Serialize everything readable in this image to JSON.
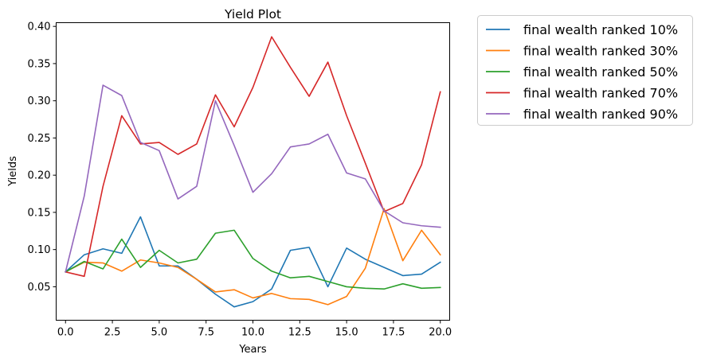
{
  "chart_data": {
    "type": "line",
    "title": "Yield Plot",
    "xlabel": "Years",
    "ylabel": "Yields",
    "xlim": [
      -0.5,
      20.5
    ],
    "ylim": [
      0.005,
      0.405
    ],
    "x_ticks": [
      0.0,
      2.5,
      5.0,
      7.5,
      10.0,
      12.5,
      15.0,
      17.5,
      20.0
    ],
    "x_tick_labels": [
      "0.0",
      "2.5",
      "5.0",
      "7.5",
      "10.0",
      "12.5",
      "15.0",
      "17.5",
      "20.0"
    ],
    "y_ticks": [
      0.05,
      0.1,
      0.15,
      0.2,
      0.25,
      0.3,
      0.35,
      0.4
    ],
    "y_tick_labels": [
      "0.05",
      "0.10",
      "0.15",
      "0.20",
      "0.25",
      "0.30",
      "0.35",
      "0.40"
    ],
    "grid": false,
    "legend_position": "outside-upper-right",
    "x": [
      0,
      1,
      2,
      3,
      4,
      5,
      6,
      7,
      8,
      9,
      10,
      11,
      12,
      13,
      14,
      15,
      16,
      17,
      18,
      19,
      20
    ],
    "series": [
      {
        "name": "final wealth ranked 10%",
        "color": "#1f77b4",
        "values": [
          0.07,
          0.093,
          0.101,
          0.095,
          0.144,
          0.078,
          0.078,
          0.06,
          0.04,
          0.023,
          0.03,
          0.047,
          0.099,
          0.103,
          0.05,
          0.102,
          0.087,
          0.076,
          0.065,
          0.067,
          0.083
        ]
      },
      {
        "name": "final wealth ranked 30%",
        "color": "#ff7f0e",
        "values": [
          0.07,
          0.083,
          0.082,
          0.071,
          0.086,
          0.082,
          0.076,
          0.06,
          0.043,
          0.046,
          0.035,
          0.041,
          0.034,
          0.033,
          0.026,
          0.037,
          0.075,
          0.155,
          0.085,
          0.126,
          0.093
        ]
      },
      {
        "name": "final wealth ranked 50%",
        "color": "#2ca02c",
        "values": [
          0.07,
          0.084,
          0.074,
          0.114,
          0.076,
          0.099,
          0.082,
          0.087,
          0.122,
          0.126,
          0.088,
          0.071,
          0.062,
          0.064,
          0.057,
          0.05,
          0.048,
          0.047,
          0.054,
          0.048,
          0.049
        ]
      },
      {
        "name": "final wealth ranked 70%",
        "color": "#d62728",
        "values": [
          0.07,
          0.064,
          0.185,
          0.28,
          0.242,
          0.244,
          0.228,
          0.242,
          0.308,
          0.265,
          0.318,
          0.386,
          0.345,
          0.306,
          0.352,
          0.28,
          0.216,
          0.151,
          0.162,
          0.214,
          0.312
        ]
      },
      {
        "name": "final wealth ranked 90%",
        "color": "#9467bd",
        "values": [
          0.07,
          0.172,
          0.321,
          0.307,
          0.244,
          0.233,
          0.168,
          0.185,
          0.3,
          0.24,
          0.177,
          0.202,
          0.238,
          0.242,
          0.255,
          0.203,
          0.195,
          0.152,
          0.136,
          0.132,
          0.13
        ]
      }
    ]
  }
}
